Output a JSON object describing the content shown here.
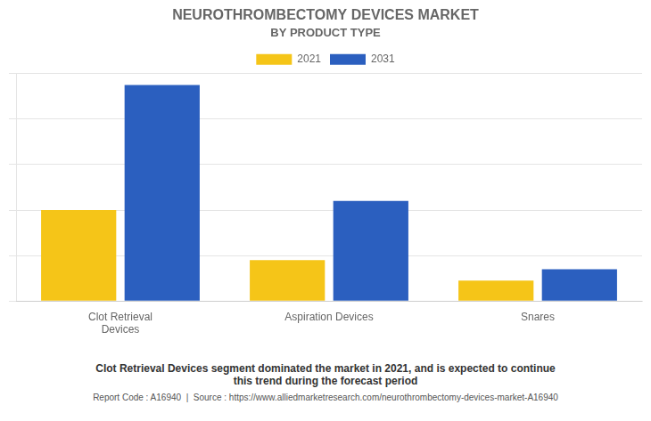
{
  "chart_data": {
    "type": "bar",
    "title": "NEUROTHROMBECTOMY DEVICES MARKET",
    "subtitle": "BY PRODUCT TYPE",
    "categories": [
      "Clot Retrieval\nDevices",
      "Aspiration Devices",
      "Snares"
    ],
    "series": [
      {
        "name": "2021",
        "color": "#F5C518",
        "values": [
          40,
          18,
          9
        ]
      },
      {
        "name": "2031",
        "color": "#2B5FBF",
        "values": [
          95,
          44,
          14
        ]
      }
    ],
    "ylim": [
      0,
      100
    ],
    "yticks": [
      0,
      20,
      40,
      60,
      80,
      100
    ],
    "grid": true,
    "legend": "top",
    "tick_labels": "x",
    "annotations": [
      "Clot Retrieval Devices segment dominated the market in 2021, and is expected to continue\nthis trend during the forecast period",
      "Report Code : A16940  |  Source : https://www.alliedmarketresearch.com/neurothrombectomy-devices-market-A16940"
    ]
  }
}
